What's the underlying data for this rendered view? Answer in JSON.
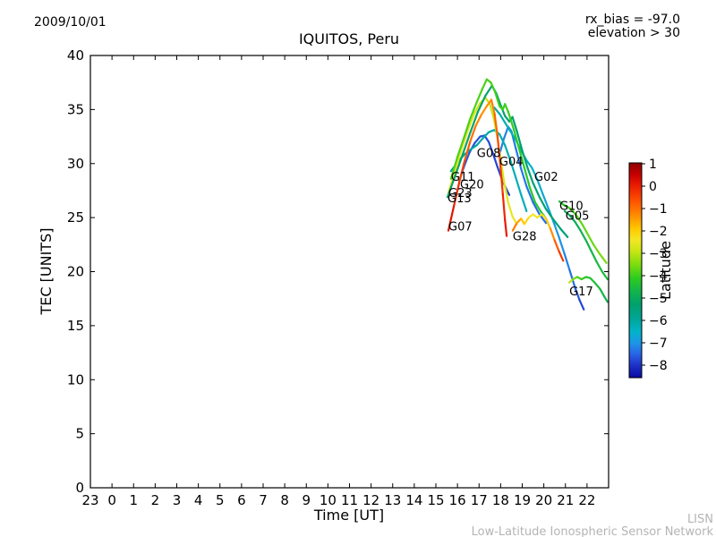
{
  "header": {
    "date": "2009/10/01",
    "rx_bias": "rx_bias = -97.0",
    "elevation": "elevation > 30"
  },
  "footer": {
    "brand": "LISN",
    "brand_subtitle": "Low-Latitude Ionospheric Sensor Network"
  },
  "chart_data": {
    "type": "line",
    "title": "IQUITOS, Peru",
    "xlabel": "Time [UT]",
    "ylabel": "TEC [UNITS]",
    "x_axis_start_hour_ut": 23,
    "x_hours_span": 24,
    "x_tick_labels": [
      "23",
      "0",
      "1",
      "2",
      "3",
      "4",
      "5",
      "6",
      "7",
      "8",
      "9",
      "10",
      "11",
      "12",
      "13",
      "14",
      "15",
      "16",
      "17",
      "18",
      "19",
      "20",
      "21",
      "22"
    ],
    "ylim": [
      0,
      40
    ],
    "y_ticks": [
      0,
      5,
      10,
      15,
      20,
      25,
      30,
      35,
      40
    ],
    "grid": false,
    "colorbar": {
      "label": "Latitude",
      "tick_values": [
        1,
        0,
        -1,
        -2,
        -3,
        -4,
        -5,
        -6,
        -7,
        -8
      ],
      "tick_labels": [
        "1",
        "0",
        "−1",
        "−2",
        "−3",
        "−4",
        "−5",
        "−6",
        "−7",
        "−8"
      ],
      "value_top": 1.04,
      "value_bottom": -8.56,
      "colormap": "jet-like",
      "colormap_stops": [
        [
          1.04,
          "#8b0000"
        ],
        [
          0.5,
          "#c80000"
        ],
        [
          0.0,
          "#eb1e00"
        ],
        [
          -0.7,
          "#ff5500"
        ],
        [
          -1.3,
          "#ff8c00"
        ],
        [
          -1.9,
          "#ffc800"
        ],
        [
          -2.4,
          "#f5e625"
        ],
        [
          -2.9,
          "#c8e614"
        ],
        [
          -3.5,
          "#7ddc0f"
        ],
        [
          -4.1,
          "#2ecc1e"
        ],
        [
          -4.7,
          "#12b44b"
        ],
        [
          -5.3,
          "#00a06e"
        ],
        [
          -5.9,
          "#00a596"
        ],
        [
          -6.5,
          "#00b4c8"
        ],
        [
          -7.0,
          "#1e96e6"
        ],
        [
          -7.5,
          "#2864e6"
        ],
        [
          -8.0,
          "#1e32c8"
        ],
        [
          -8.56,
          "#0a0aa0"
        ]
      ]
    },
    "series_note": "points are [hours_since_23UT, TEC_units, latitude_deg]; curve color encodes latitude",
    "series": [
      {
        "id": "G20",
        "label_at": [
          17.12,
          27.7
        ],
        "points": [
          [
            17.08,
            28.4,
            -7.6
          ],
          [
            17.3,
            29.7,
            -7.6
          ],
          [
            17.55,
            31.0,
            -7.6
          ],
          [
            17.8,
            31.9,
            -7.7
          ],
          [
            18.05,
            32.5,
            -7.7
          ],
          [
            18.25,
            32.6,
            -7.7
          ],
          [
            18.45,
            32.0,
            -7.7
          ],
          [
            18.65,
            30.9,
            -7.8
          ],
          [
            18.85,
            29.7,
            -7.8
          ],
          [
            19.05,
            28.6,
            -7.8
          ],
          [
            19.25,
            27.7,
            -7.9
          ],
          [
            19.4,
            27.1,
            -7.9
          ]
        ]
      },
      {
        "id": "G04",
        "label_at": [
          18.94,
          29.8
        ],
        "points": [
          [
            18.94,
            30.8,
            -7.2
          ],
          [
            19.15,
            32.3,
            -7.2
          ],
          [
            19.35,
            33.4,
            -7.2
          ],
          [
            19.5,
            33.0,
            -7.2
          ],
          [
            19.7,
            31.4,
            -7.3
          ],
          [
            19.95,
            29.5,
            -7.3
          ],
          [
            20.2,
            27.9,
            -7.3
          ],
          [
            20.5,
            26.4,
            -7.4
          ],
          [
            20.8,
            25.3,
            -7.4
          ],
          [
            21.1,
            24.5,
            -7.4
          ]
        ]
      },
      {
        "id": "G02",
        "label_at": [
          20.56,
          28.4
        ],
        "points": [
          [
            18.7,
            35.2,
            -6.1
          ],
          [
            18.95,
            34.6,
            -6.15
          ],
          [
            19.2,
            33.8,
            -6.2
          ],
          [
            19.45,
            33.0,
            -6.3
          ],
          [
            19.7,
            32.2,
            -6.35
          ],
          [
            19.95,
            31.2,
            -6.4
          ],
          [
            20.2,
            30.3,
            -6.45
          ],
          [
            20.45,
            29.6,
            -6.5
          ],
          [
            20.7,
            28.5,
            -6.6
          ],
          [
            20.95,
            27.2,
            -6.7
          ],
          [
            21.2,
            25.9,
            -6.8
          ],
          [
            21.45,
            24.6,
            -6.9
          ],
          [
            21.7,
            23.2,
            -7.0
          ],
          [
            21.95,
            21.7,
            -7.1
          ],
          [
            22.2,
            20.1,
            -7.3
          ],
          [
            22.45,
            18.5,
            -7.5
          ],
          [
            22.65,
            17.4,
            -7.7
          ],
          [
            22.85,
            16.5,
            -7.9
          ]
        ]
      },
      {
        "id": "G08",
        "label_at": [
          17.9,
          30.6
        ],
        "points": [
          [
            16.7,
            29.3,
            -5.9
          ],
          [
            17.0,
            30.1,
            -5.9
          ],
          [
            17.3,
            30.8,
            -6.0
          ],
          [
            17.6,
            31.3,
            -6.0
          ],
          [
            17.9,
            31.7,
            -6.0
          ],
          [
            18.2,
            32.4,
            -6.1
          ],
          [
            18.45,
            32.9,
            -6.1
          ],
          [
            18.7,
            33.1,
            -6.1
          ],
          [
            18.95,
            32.7,
            -6.2
          ],
          [
            19.2,
            31.7,
            -6.2
          ],
          [
            19.45,
            30.3,
            -6.2
          ],
          [
            19.7,
            28.7,
            -6.3
          ],
          [
            19.95,
            27.1,
            -6.3
          ],
          [
            20.2,
            25.6,
            -6.3
          ]
        ]
      },
      {
        "id": "G23",
        "label_at": [
          16.58,
          26.9
        ],
        "points": [
          [
            16.58,
            27.3,
            -2.3
          ],
          [
            16.9,
            29.4,
            -2.4
          ],
          [
            17.2,
            31.4,
            -2.5
          ],
          [
            17.5,
            33.2,
            -2.6
          ],
          [
            17.8,
            34.7,
            -2.7
          ],
          [
            18.05,
            35.6,
            -2.8
          ],
          [
            18.3,
            36.1,
            -2.9
          ],
          [
            18.5,
            35.5,
            -2.9
          ],
          [
            18.68,
            34.2,
            -2.9
          ],
          [
            18.85,
            32.4,
            -2.8
          ],
          [
            19.0,
            30.4,
            -2.8
          ],
          [
            19.15,
            28.4,
            -2.7
          ],
          [
            19.35,
            26.4,
            -2.6
          ],
          [
            19.55,
            25.1,
            -2.5
          ],
          [
            19.75,
            24.4,
            -2.5
          ]
        ]
      },
      {
        "id": "G13",
        "label_at": [
          16.54,
          26.4
        ],
        "points": [
          [
            16.54,
            26.9,
            -5.2
          ],
          [
            16.9,
            28.9,
            -5.2
          ],
          [
            17.25,
            30.9,
            -5.2
          ],
          [
            17.6,
            32.9,
            -5.2
          ],
          [
            17.95,
            34.8,
            -5.2
          ],
          [
            18.3,
            36.3,
            -5.2
          ],
          [
            18.6,
            37.2,
            -5.2
          ],
          [
            18.8,
            36.5,
            -5.2
          ],
          [
            19.0,
            35.4,
            -5.3
          ],
          [
            19.2,
            34.4,
            -5.3
          ],
          [
            19.4,
            33.9,
            -5.3
          ],
          [
            19.55,
            34.3,
            -5.3
          ],
          [
            19.75,
            33.0,
            -5.3
          ],
          [
            20.0,
            31.2,
            -5.3
          ],
          [
            20.25,
            29.6,
            -5.4
          ],
          [
            20.5,
            28.2,
            -5.4
          ],
          [
            20.8,
            26.9,
            -5.4
          ],
          [
            21.1,
            25.8,
            -5.4
          ],
          [
            21.45,
            24.8,
            -5.4
          ],
          [
            21.8,
            23.9,
            -5.5
          ],
          [
            22.1,
            23.2,
            -5.5
          ]
        ]
      },
      {
        "id": "G11",
        "label_at": [
          16.7,
          28.4
        ],
        "points": [
          [
            16.7,
            28.6,
            -3.9
          ],
          [
            17.0,
            30.6,
            -3.9
          ],
          [
            17.3,
            32.4,
            -3.9
          ],
          [
            17.6,
            34.2,
            -3.9
          ],
          [
            17.9,
            35.7,
            -3.9
          ],
          [
            18.15,
            36.9,
            -3.9
          ],
          [
            18.36,
            37.8,
            -3.9
          ],
          [
            18.55,
            37.5,
            -3.9
          ],
          [
            18.75,
            36.6,
            -4.0
          ],
          [
            18.95,
            35.3,
            -4.0
          ],
          [
            19.1,
            35.0,
            -4.0
          ],
          [
            19.2,
            35.5,
            -4.0
          ],
          [
            19.35,
            34.8,
            -4.0
          ],
          [
            19.6,
            33.2,
            -4.1
          ],
          [
            19.85,
            31.4,
            -4.1
          ],
          [
            20.1,
            29.6,
            -4.2
          ],
          [
            20.35,
            27.8,
            -4.2
          ],
          [
            20.6,
            26.4,
            -4.2
          ],
          [
            20.85,
            25.6,
            -4.3
          ],
          [
            21.1,
            24.9,
            -4.3
          ]
        ]
      },
      {
        "id": "G28",
        "label_at": [
          19.56,
          22.9
        ],
        "points": [
          [
            19.56,
            23.8,
            -0.9
          ],
          [
            19.75,
            24.5,
            -1.3
          ],
          [
            19.95,
            24.9,
            -1.7
          ],
          [
            20.1,
            24.4,
            -2.0
          ],
          [
            20.3,
            25.0,
            -2.3
          ],
          [
            20.5,
            25.3,
            -2.45
          ],
          [
            20.7,
            25.0,
            -2.4
          ],
          [
            20.9,
            25.3,
            -2.45
          ],
          [
            21.1,
            24.9,
            -2.1
          ],
          [
            21.3,
            24.0,
            -1.6
          ],
          [
            21.5,
            22.9,
            -1.0
          ],
          [
            21.7,
            21.9,
            -0.5
          ],
          [
            21.9,
            21.0,
            -0.2
          ]
        ]
      },
      {
        "id": "G10",
        "label_at": [
          21.72,
          25.7
        ],
        "points": [
          [
            21.72,
            26.5,
            -4.6
          ],
          [
            21.9,
            26.2,
            -4.3
          ],
          [
            22.1,
            26.0,
            -4.1
          ],
          [
            22.3,
            25.7,
            -3.9
          ],
          [
            22.55,
            25.1,
            -3.8
          ],
          [
            22.8,
            24.3,
            -3.7
          ],
          [
            23.05,
            23.4,
            -3.7
          ],
          [
            23.3,
            22.5,
            -3.6
          ],
          [
            23.6,
            21.6,
            -3.6
          ],
          [
            23.9,
            20.8,
            -3.5
          ]
        ]
      },
      {
        "id": "G05",
        "label_at": [
          22.0,
          24.8
        ],
        "points": [
          [
            21.97,
            25.6,
            -5.1
          ],
          [
            22.2,
            25.2,
            -5.0
          ],
          [
            22.45,
            24.6,
            -5.0
          ],
          [
            22.7,
            23.8,
            -4.9
          ],
          [
            22.95,
            22.9,
            -4.8
          ],
          [
            23.2,
            21.9,
            -4.7
          ],
          [
            23.45,
            20.9,
            -4.6
          ],
          [
            23.7,
            20.0,
            -4.5
          ],
          [
            23.95,
            19.3,
            -4.5
          ]
        ]
      },
      {
        "id": "G17",
        "label_at": [
          22.18,
          17.8
        ],
        "points": [
          [
            22.18,
            19.0,
            -2.7
          ],
          [
            22.35,
            19.3,
            -3.3
          ],
          [
            22.55,
            19.5,
            -3.8
          ],
          [
            22.75,
            19.3,
            -4.0
          ],
          [
            22.95,
            19.5,
            -4.2
          ],
          [
            23.15,
            19.4,
            -4.3
          ],
          [
            23.35,
            19.0,
            -4.4
          ],
          [
            23.6,
            18.4,
            -4.6
          ],
          [
            23.8,
            17.7,
            -4.7
          ],
          [
            23.95,
            17.2,
            -4.8
          ]
        ]
      },
      {
        "id": "G07",
        "label_at": [
          16.58,
          23.8
        ],
        "points": [
          [
            16.58,
            23.8,
            0.3
          ],
          [
            16.85,
            26.2,
            0.0
          ],
          [
            17.1,
            28.4,
            -0.3
          ],
          [
            17.35,
            30.4,
            -0.6
          ],
          [
            17.6,
            32.1,
            -0.9
          ],
          [
            17.85,
            33.5,
            -1.1
          ],
          [
            18.1,
            34.5,
            -1.3
          ],
          [
            18.35,
            35.3,
            -1.35
          ],
          [
            18.57,
            35.9,
            -1.3
          ],
          [
            18.72,
            34.6,
            -1.0
          ],
          [
            18.85,
            32.6,
            -0.7
          ],
          [
            18.98,
            30.0,
            -0.4
          ],
          [
            19.1,
            27.2,
            -0.2
          ],
          [
            19.2,
            24.8,
            0.0
          ],
          [
            19.28,
            23.3,
            0.1
          ]
        ]
      }
    ]
  }
}
